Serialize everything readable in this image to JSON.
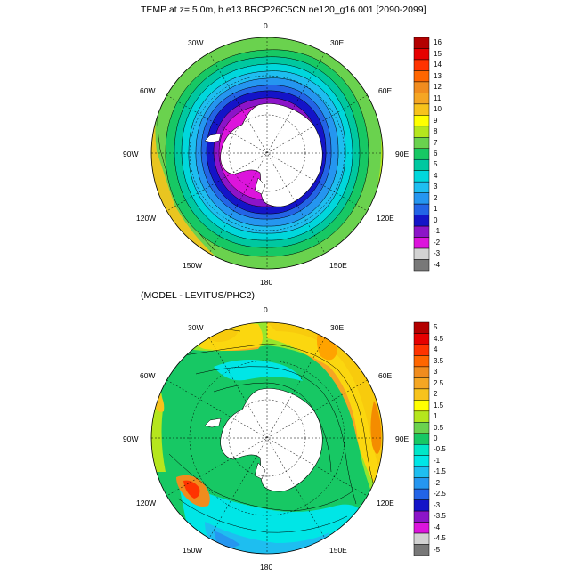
{
  "maps": [
    {
      "title": "TEMP at z=   5.0m, b.e13.BRCP26C5CN.ne120_g16.001 [2090-2099]",
      "longitude_labels": {
        "0": "0",
        "30E": "30E",
        "60E": "60E",
        "90E": "90E",
        "120E": "120E",
        "150E": "150E",
        "180": "180",
        "150W": "150W",
        "120W": "120W",
        "90W": "90W",
        "60W": "60W",
        "30W": "30W"
      },
      "colorbar": {
        "labels": [
          "16",
          "15",
          "14",
          "13",
          "12",
          "11",
          "10",
          "9",
          "8",
          "7",
          "6",
          "5",
          "4",
          "3",
          "2",
          "1",
          "0",
          "-1",
          "-2",
          "-3",
          "-4"
        ],
        "colors": [
          "#b30000",
          "#e60000",
          "#ff3300",
          "#ff6600",
          "#f08c1e",
          "#f5a623",
          "#f7c31c",
          "#ffff00",
          "#b5e61d",
          "#6ad24e",
          "#17c864",
          "#00c8a0",
          "#00d7dc",
          "#1ebef0",
          "#2596f0",
          "#2364e6",
          "#1414c8",
          "#8c14c8",
          "#dc14dc",
          "#d2d2d2",
          "#787878"
        ]
      }
    },
    {
      "title": "(MODEL - LEVITUS/PHC2)",
      "longitude_labels": {
        "0": "0",
        "30E": "30E",
        "60E": "60E",
        "90E": "90E",
        "120E": "120E",
        "150E": "150E",
        "180": "180",
        "150W": "150W",
        "120W": "120W",
        "90W": "90W",
        "60W": "60W",
        "30W": "30W"
      },
      "colorbar": {
        "labels": [
          "5",
          "4.5",
          "4",
          "3.5",
          "3",
          "2.5",
          "2",
          "1.5",
          "1",
          "0.5",
          "0",
          "-0.5",
          "-1",
          "-1.5",
          "-2",
          "-2.5",
          "-3",
          "-3.5",
          "-4",
          "-4.5",
          "-5"
        ],
        "colors": [
          "#b30000",
          "#e60000",
          "#ff3300",
          "#ff6600",
          "#f08c1e",
          "#f5a623",
          "#f7c31c",
          "#ffff00",
          "#b5e61d",
          "#6ad24e",
          "#17c864",
          "#00e6c8",
          "#00e6e6",
          "#1ebef0",
          "#2596f0",
          "#2364e6",
          "#1414c8",
          "#8c14c8",
          "#dc14dc",
          "#d2d2d2",
          "#787878"
        ]
      }
    }
  ]
}
